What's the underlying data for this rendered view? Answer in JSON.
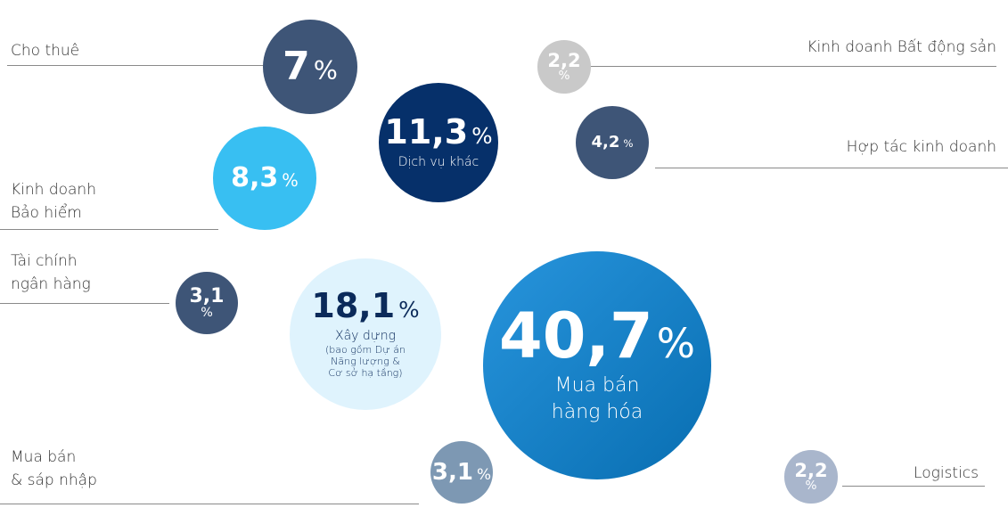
{
  "chart_data": {
    "type": "bubble",
    "unit": "%",
    "categories": [
      "Cho thuê",
      "Kinh doanh Bất động sản",
      "Dịch vụ khác",
      "Hợp tác kinh doanh",
      "Kinh doanh\nBảo hiểm",
      "Tài chính\nngân hàng",
      "Xây dựng",
      "Mua bán\nhàng hóa",
      "Mua bán\n& sáp nhập",
      "Logistics"
    ],
    "values": [
      7,
      2.2,
      11.3,
      4.2,
      8.3,
      3.1,
      18.1,
      40.7,
      3.1,
      2.2
    ],
    "value_labels": [
      "7",
      "2,2",
      "11,3",
      "4,2",
      "8,3",
      "3,1",
      "18,1",
      "40,7",
      "3,1",
      "2,2"
    ],
    "colors": [
      "#3e5577",
      "#c9c9c9",
      "#06306a",
      "#3e5577",
      "#38bff2",
      "#3e5577",
      "#dff3fd",
      "#0a86d8",
      "#7d98b3",
      "#a9b6cc"
    ],
    "annotations": [
      {
        "text": "(bao gồm Dự án\nNăng lượng &\nCơ sở hạ tầng)"
      }
    ]
  }
}
